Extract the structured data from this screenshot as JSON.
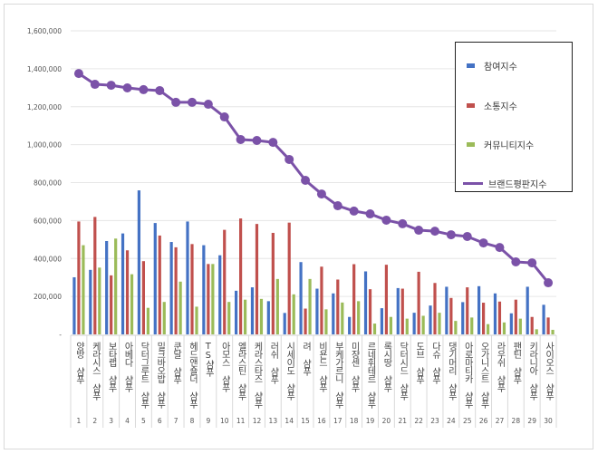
{
  "chart_data": {
    "type": "bar",
    "title": "",
    "xlabel": "",
    "ylabel": "",
    "ylim": [
      0,
      1600000
    ],
    "yticks": [
      0,
      200000,
      400000,
      600000,
      800000,
      1000000,
      1200000,
      1400000,
      1600000
    ],
    "ytick_labels": [
      "-",
      "200,000",
      "400,000",
      "600,000",
      "800,000",
      "1,000,000",
      "1,200,000",
      "1,400,000",
      "1,600,000"
    ],
    "grid": true,
    "legend_position": "top-right",
    "categories": [
      "양방 샴푸",
      "케라시스 샴푸",
      "보타랩 샴푸",
      "아베다 샴푸",
      "닥터그루트 샴푸",
      "밀크바오밥 샴푸",
      "쿤달 샴푸",
      "헤드앤숄더 샴푸",
      "TS샴푸",
      "아모스 샴푸",
      "엘라스틴 샴푸",
      "케라스타즈 샴푸",
      "러쉬 샴푸",
      "시세이도 샴푸",
      "려 샴푸",
      "비욘드 샴푸",
      "부케가르니 샴푸",
      "미쟝센 샴푸",
      "르네휘테르 샴푸",
      "록시땅 샴푸",
      "닥터시드 샴푸",
      "도브 샴푸",
      "다슈 샴푸",
      "댕기머리 샴푸",
      "아로마티카 샴푸",
      "오가니스트 샴푸",
      "라우쉬 샴푸",
      "팬틴 샴푸",
      "키라니아 샴푸",
      "사이오스 샴푸"
    ],
    "ranks": [
      "1",
      "2",
      "3",
      "4",
      "5",
      "6",
      "7",
      "8",
      "9",
      "10",
      "11",
      "12",
      "13",
      "14",
      "15",
      "16",
      "17",
      "18",
      "19",
      "20",
      "21",
      "22",
      "23",
      "24",
      "25",
      "26",
      "27",
      "28",
      "29",
      "30"
    ],
    "series": [
      {
        "name": "참여지수",
        "type": "bar",
        "color": "#4472c4",
        "values": [
          301000,
          340000,
          492000,
          532000,
          759000,
          587000,
          487000,
          595000,
          470000,
          417000,
          230000,
          248000,
          175000,
          113000,
          381000,
          241000,
          216000,
          92000,
          332000,
          138000,
          244000,
          114000,
          152000,
          251000,
          170000,
          254000,
          216000,
          111000,
          251000,
          156000
        ]
      },
      {
        "name": "소통지수",
        "type": "bar",
        "color": "#c0504d",
        "values": [
          595000,
          619000,
          311000,
          443000,
          386000,
          521000,
          459000,
          476000,
          371000,
          551000,
          611000,
          582000,
          535000,
          589000,
          136000,
          357000,
          289000,
          370000,
          238000,
          367000,
          241000,
          330000,
          271000,
          192000,
          248000,
          167000,
          173000,
          183000,
          92000,
          89000
        ]
      },
      {
        "name": "커뮤니티지수",
        "type": "bar",
        "color": "#9bbb59",
        "values": [
          470000,
          352000,
          505000,
          317000,
          140000,
          171000,
          278000,
          146000,
          371000,
          171000,
          183000,
          187000,
          292000,
          211000,
          292000,
          132000,
          168000,
          175000,
          57000,
          92000,
          83000,
          98000,
          114000,
          71000,
          89000,
          54000,
          63000,
          83000,
          27000,
          24000
        ]
      },
      {
        "name": "브랜드평판지수",
        "type": "line",
        "color": "#7b52a8",
        "values": [
          1375000,
          1318000,
          1313000,
          1299000,
          1290000,
          1285000,
          1223000,
          1223000,
          1213000,
          1146000,
          1027000,
          1022000,
          1012000,
          922000,
          812000,
          740000,
          678000,
          650000,
          635000,
          602000,
          583000,
          549000,
          544000,
          525000,
          516000,
          482000,
          458000,
          382000,
          377000,
          272000
        ]
      }
    ]
  }
}
